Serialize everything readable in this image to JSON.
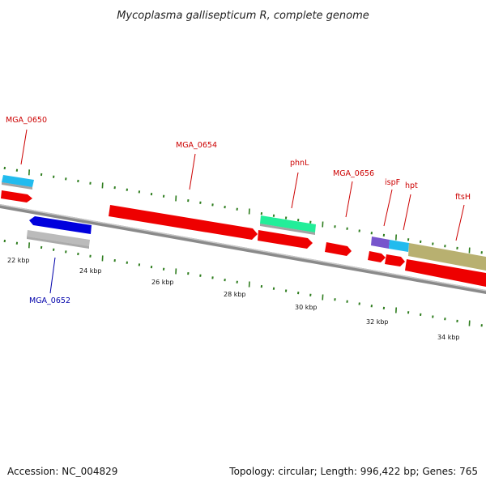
{
  "title": "Mycoplasma gallisepticum R, complete genome",
  "footer": {
    "accession": "Accession: NC_004829",
    "summary": "Topology: circular; Length: 996,422 bp; Genes: 765"
  },
  "colors": {
    "backbone": "#8a8a8a",
    "tick": "#2e7d1e",
    "label_forward": "#cc0000",
    "label_reverse": "#0000aa"
  },
  "tick_labels": [
    "22 kbp",
    "24 kbp",
    "26 kbp",
    "28 kbp",
    "30 kbp",
    "32 kbp",
    "34 kbp"
  ],
  "labels": [
    {
      "text": "MGA_0650",
      "strand": "forward"
    },
    {
      "text": "MGA_0652",
      "strand": "reverse"
    },
    {
      "text": "MGA_0654",
      "strand": "forward"
    },
    {
      "text": "phnL",
      "strand": "forward"
    },
    {
      "text": "MGA_0656",
      "strand": "forward"
    },
    {
      "text": "ispF",
      "strand": "forward"
    },
    {
      "text": "hpt",
      "strand": "forward"
    },
    {
      "text": "ftsH",
      "strand": "forward"
    }
  ],
  "features": [
    {
      "name": "cds-mga0650",
      "color": "#ee0000"
    },
    {
      "name": "gene-mga0650",
      "color": "#22bbee"
    },
    {
      "name": "cds-mga0652",
      "color": "#0000dd"
    },
    {
      "name": "gene-mga0652",
      "color": "#bbbbbb"
    },
    {
      "name": "cds-mga0654",
      "color": "#ee0000"
    },
    {
      "name": "gene-phnl",
      "color": "#22ee99"
    },
    {
      "name": "cds-phnl",
      "color": "#ee0000"
    },
    {
      "name": "cds-mga0656",
      "color": "#ee0000"
    },
    {
      "name": "gene-ispf",
      "color": "#7755cc"
    },
    {
      "name": "gene-hpt",
      "color": "#22bbee"
    },
    {
      "name": "gene-ftsh",
      "color": "#b8b070"
    },
    {
      "name": "cds-ispf",
      "color": "#ee0000"
    },
    {
      "name": "cds-hpt",
      "color": "#ee0000"
    },
    {
      "name": "cds-ftsh",
      "color": "#ee0000"
    }
  ]
}
